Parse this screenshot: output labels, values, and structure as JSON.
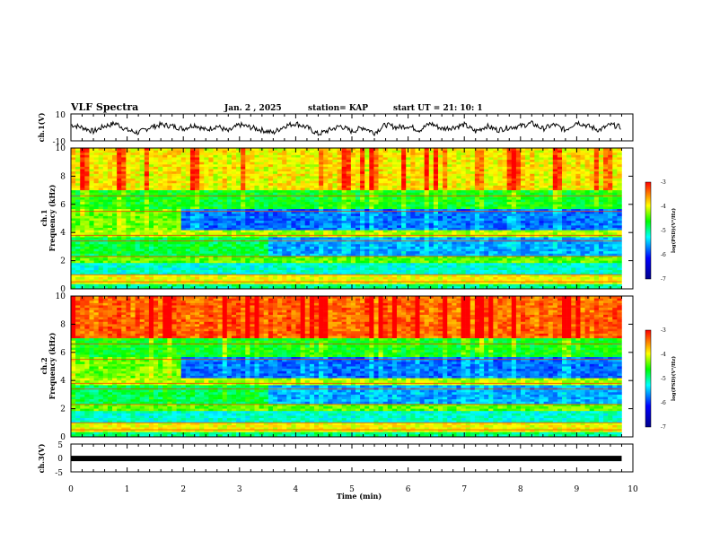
{
  "header": {
    "title": "VLF Spectra",
    "date": "Jan. 2 , 2025",
    "station": "station= KAP",
    "start": "start  UT =  21: 10: 1"
  },
  "chart_data": [
    {
      "type": "line",
      "name": "ch1-waveform",
      "ylabel": "ch.1(V)",
      "ylim": [
        -10,
        10
      ],
      "y_tick_labels": [
        "10",
        "-10"
      ],
      "x": [
        0.0,
        0.2,
        0.4,
        0.6,
        0.8,
        1.0,
        1.2,
        1.4,
        1.6,
        1.8,
        2.0,
        2.2,
        2.4,
        2.6,
        2.8,
        3.0,
        3.2,
        3.4,
        3.6,
        3.8,
        4.0,
        4.2,
        4.4,
        4.6,
        4.8,
        5.0,
        5.2,
        5.4,
        5.6,
        5.8,
        6.0,
        6.2,
        6.4,
        6.6,
        6.8,
        7.0,
        7.2,
        7.4,
        7.6,
        7.8,
        8.0,
        8.2,
        8.4,
        8.6,
        8.8,
        9.0,
        9.2,
        9.4,
        9.6,
        9.8
      ],
      "values": [
        2,
        0,
        -3,
        1,
        3,
        -2,
        -4,
        0,
        2,
        1,
        -1,
        2,
        -2,
        1,
        -3,
        2,
        0,
        -2,
        -4,
        1,
        3,
        0,
        -5,
        -2,
        1,
        -3,
        0,
        -4,
        2,
        0,
        1,
        -2,
        3,
        -1,
        0,
        2,
        -3,
        1,
        -2,
        0,
        1,
        3,
        -1,
        2,
        -2,
        4,
        1,
        -2,
        2,
        0
      ]
    },
    {
      "type": "heatmap",
      "name": "ch1-spectrogram",
      "ylabel": "ch.1\nFrequency (kHz)",
      "ylim": [
        0,
        10
      ],
      "y_ticks": [
        0,
        2,
        4,
        6,
        8,
        10
      ],
      "colorbar": {
        "label": "log(PSD)(V²/Hz)",
        "range": [
          -7,
          -3
        ],
        "ticks": [
          "-3",
          "-4",
          "-5",
          "-6",
          "-7"
        ]
      }
    },
    {
      "type": "heatmap",
      "name": "ch2-spectrogram",
      "ylabel": "ch.2\nFrequency (kHz)",
      "ylim": [
        0,
        10
      ],
      "y_ticks": [
        0,
        2,
        4,
        6,
        8,
        10
      ],
      "colorbar": {
        "label": "log(PSD)(V²/Hz)",
        "range": [
          -7,
          -3
        ],
        "ticks": [
          "-3",
          "-4",
          "-5",
          "-6",
          "-7"
        ]
      }
    },
    {
      "type": "line",
      "name": "ch3-waveform",
      "ylabel": "ch.3(V)",
      "ylim": [
        -5,
        5
      ],
      "y_tick_labels": [
        "5",
        "0",
        "-5"
      ],
      "x": [
        0,
        9.8
      ],
      "values": [
        -0.2,
        -0.2
      ]
    }
  ],
  "xaxis": {
    "label": "Time (min)",
    "ticks": [
      "0",
      "1",
      "2",
      "3",
      "4",
      "5",
      "6",
      "7",
      "8",
      "9",
      "10"
    ],
    "range": [
      0,
      10
    ]
  },
  "colors": {
    "spectrum": [
      "#00008b",
      "#0000ff",
      "#00ffff",
      "#00ff00",
      "#ffff00",
      "#ff0000"
    ],
    "spectrum_stops": [
      -7,
      -6.2,
      -5.4,
      -4.8,
      -4.2,
      -3.3
    ],
    "line": "#000000"
  }
}
